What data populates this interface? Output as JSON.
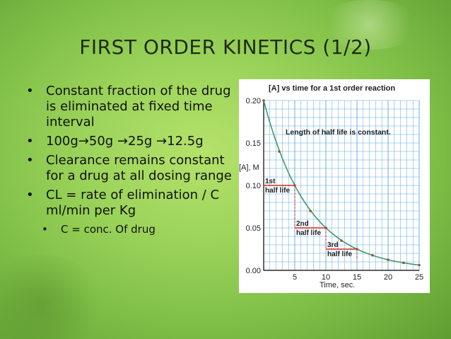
{
  "title": "FIRST ORDER KINETICS (1/2)",
  "bullets": [
    "Constant fraction of the drug is eliminated at fixed time interval",
    "100g→50g →25g →12.5g",
    "Clearance remains constant for a drug at all dosing range",
    "CL = rate of elimination / C ml/min per Kg"
  ],
  "sub_bullets": [
    "C = conc. Of drug"
  ],
  "bullet_glyph": "•",
  "chart_data": {
    "type": "line",
    "title": "[A] vs time for a 1st order reaction",
    "xlabel": "Time, sec.",
    "ylabel": "[A], M",
    "xlim": [
      0,
      25
    ],
    "ylim": [
      0,
      0.2
    ],
    "xticks": [
      "5",
      "10",
      "15",
      "20",
      "25"
    ],
    "yticks": [
      "0.00",
      "0.05",
      "0.10",
      "0.15",
      "0.20"
    ],
    "grid": true,
    "annotation": "Length of half life is constant.",
    "series": [
      {
        "x": [
          0,
          2.5,
          5,
          7.5,
          10,
          12.5,
          15,
          17.5,
          20,
          22.5,
          25
        ],
        "y": [
          0.2,
          0.14,
          0.1,
          0.07,
          0.05,
          0.035,
          0.025,
          0.0177,
          0.0125,
          0.0088,
          0.00625
        ],
        "color": "#3d9b6a"
      }
    ],
    "half_lives": [
      {
        "label": [
          "1st",
          "half life"
        ],
        "t_start": 0,
        "t_end": 5,
        "conc": 0.1
      },
      {
        "label": [
          "2nd",
          "half life"
        ],
        "t_start": 5,
        "t_end": 10,
        "conc": 0.05
      },
      {
        "label": [
          "3rd",
          "half life"
        ],
        "t_start": 10,
        "t_end": 15,
        "conc": 0.025
      }
    ],
    "colors": {
      "curve": "#3d9b6a",
      "grid": "#5aa6e8",
      "half_life": "#d42a1e",
      "marker": "#a0522d"
    }
  }
}
